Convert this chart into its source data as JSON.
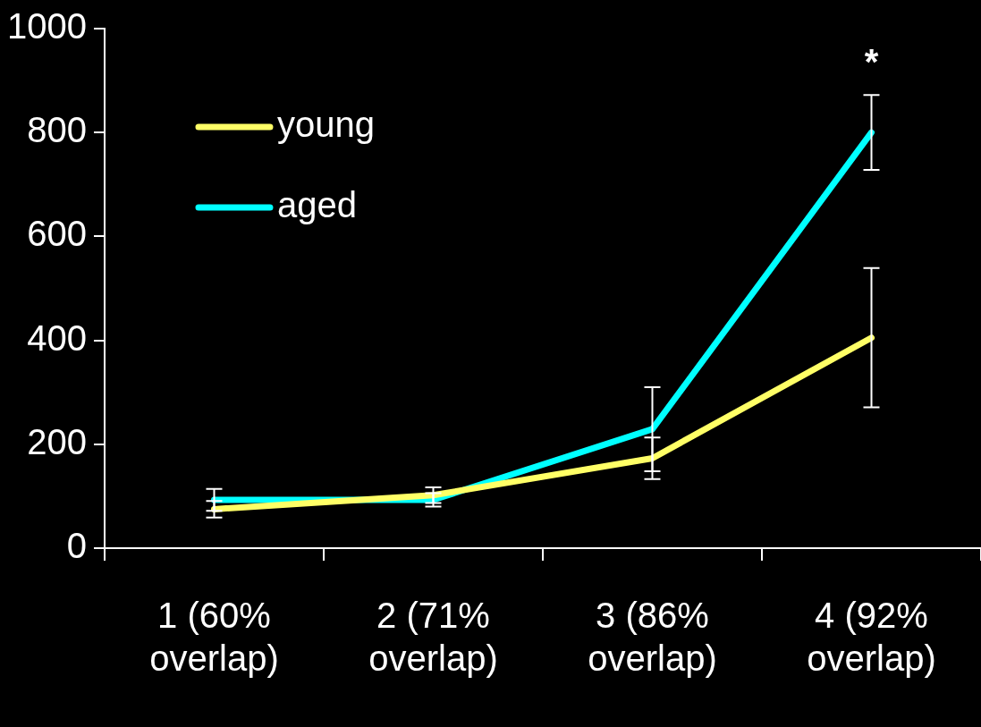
{
  "chart_data": {
    "type": "line",
    "categories": [
      "1 (60% overlap)",
      "2 (71% overlap)",
      "3 (86% overlap)",
      "4 (92% overlap)"
    ],
    "series": [
      {
        "name": "young",
        "color": "#ffff66",
        "values": [
          75,
          102,
          173,
          405
        ],
        "errors": [
          16,
          15,
          40,
          134
        ]
      },
      {
        "name": "aged",
        "color": "#00ffff",
        "values": [
          93,
          93,
          229,
          800
        ],
        "errors": [
          21,
          13,
          81,
          72
        ]
      }
    ],
    "ylim": [
      0,
      1000
    ],
    "yticks": [
      0,
      200,
      400,
      600,
      800,
      1000
    ],
    "grid": false,
    "legend": "top left",
    "line_style": "solid",
    "annotations": [
      "*"
    ]
  }
}
